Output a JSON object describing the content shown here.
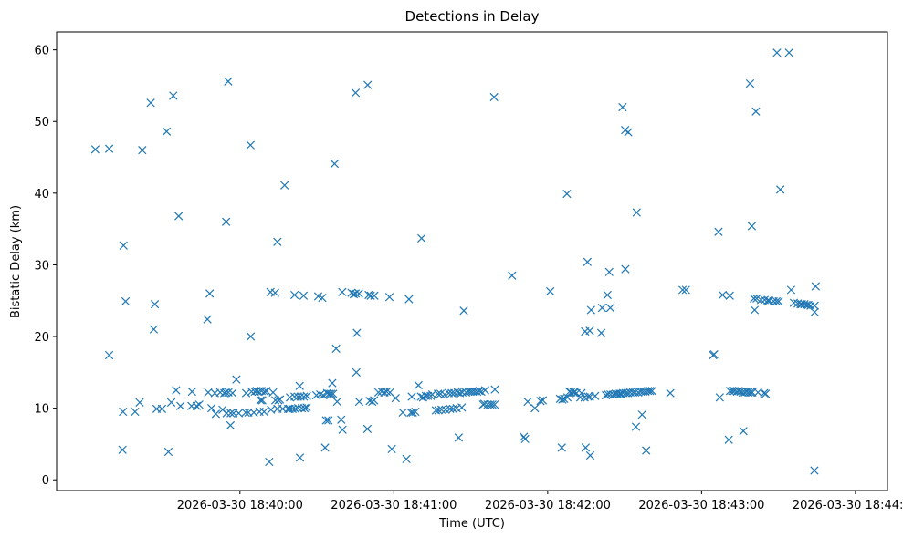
{
  "chart_data": {
    "type": "scatter",
    "title": "Detections in Delay",
    "xlabel": "Time (UTC)",
    "ylabel": "Bistatic Delay (km)",
    "x_unit": "seconds after 2026-03-30 18:39:00",
    "xlim": [
      -11.5,
      312.5
    ],
    "ylim": [
      -1.5,
      62.5
    ],
    "x_ticks": [
      {
        "value": 60,
        "label": "2026-03-30 18:40:00"
      },
      {
        "value": 120,
        "label": "2026-03-30 18:41:00"
      },
      {
        "value": 180,
        "label": "2026-03-30 18:42:00"
      },
      {
        "value": 240,
        "label": "2026-03-30 18:43:00"
      },
      {
        "value": 300,
        "label": "2026-03-30 18:44:00"
      }
    ],
    "y_ticks": [
      {
        "value": 0,
        "label": "0"
      },
      {
        "value": 10,
        "label": "10"
      },
      {
        "value": 20,
        "label": "20"
      },
      {
        "value": 30,
        "label": "30"
      },
      {
        "value": 40,
        "label": "40"
      },
      {
        "value": 50,
        "label": "50"
      },
      {
        "value": 60,
        "label": "60"
      }
    ],
    "marker": "x",
    "color": "#1f77b4",
    "grid": false,
    "series": [
      {
        "name": "detections",
        "points": [
          [
            3.6,
            46.1
          ],
          [
            9,
            46.2
          ],
          [
            9,
            17.4
          ],
          [
            14.6,
            32.7
          ],
          [
            15.4,
            24.9
          ],
          [
            14.4,
            9.5
          ],
          [
            14.2,
            4.2
          ],
          [
            19.1,
            9.5
          ],
          [
            20.9,
            10.8
          ],
          [
            21.9,
            46
          ],
          [
            25.2,
            52.6
          ],
          [
            26.8,
            24.5
          ],
          [
            26.4,
            21
          ],
          [
            27.5,
            9.9
          ],
          [
            29.6,
            9.9
          ],
          [
            31.4,
            48.6
          ],
          [
            32.1,
            3.9
          ],
          [
            33.2,
            10.8
          ],
          [
            34,
            53.6
          ],
          [
            35.1,
            12.5
          ],
          [
            36.1,
            36.8
          ],
          [
            36.8,
            10.3
          ],
          [
            41.3,
            12.3
          ],
          [
            41.1,
            10.3
          ],
          [
            43.1,
            10.3
          ],
          [
            44.1,
            10.5
          ],
          [
            47.3,
            22.4
          ],
          [
            48.2,
            26
          ],
          [
            47.6,
            12.2
          ],
          [
            48.9,
            10
          ],
          [
            50.2,
            12.1
          ],
          [
            50.6,
            9.2
          ],
          [
            52.3,
            12.2
          ],
          [
            53.2,
            9.8
          ],
          [
            53.9,
            12.1
          ],
          [
            54.6,
            36
          ],
          [
            54.5,
            12.2
          ],
          [
            54.8,
            9.3
          ],
          [
            55.4,
            55.6
          ],
          [
            55.5,
            12.2
          ],
          [
            56.3,
            7.6
          ],
          [
            56.4,
            9.3
          ],
          [
            57.1,
            12.1
          ],
          [
            57.5,
            9.3
          ],
          [
            58.6,
            14
          ],
          [
            59.5,
            9.3
          ],
          [
            62.2,
            9.4
          ],
          [
            62.4,
            12.1
          ],
          [
            63.3,
            9.4
          ],
          [
            64.1,
            46.7
          ],
          [
            64.2,
            20
          ],
          [
            64.5,
            12.3
          ],
          [
            65.4,
            9.4
          ],
          [
            65.8,
            12.3
          ],
          [
            66.5,
            12.4
          ],
          [
            67.3,
            12.3
          ],
          [
            67.6,
            9.5
          ],
          [
            68,
            11.1
          ],
          [
            68.4,
            12.4
          ],
          [
            68.7,
            11.1
          ],
          [
            69.4,
            9.5
          ],
          [
            69.6,
            12.3
          ],
          [
            70.3,
            12.4
          ],
          [
            71.4,
            2.5
          ],
          [
            71.9,
            26.2
          ],
          [
            72.1,
            9.8
          ],
          [
            72.9,
            12.2
          ],
          [
            73.7,
            26.1
          ],
          [
            73.8,
            11.1
          ],
          [
            74.6,
            33.2
          ],
          [
            74.6,
            9.9
          ],
          [
            75,
            11.1
          ],
          [
            75.6,
            11.2
          ],
          [
            76.7,
            9.9
          ],
          [
            77.4,
            41.1
          ],
          [
            78.8,
            9.9
          ],
          [
            79.4,
            9.9
          ],
          [
            79.5,
            11.5
          ],
          [
            80.5,
            9.9
          ],
          [
            81.3,
            25.8
          ],
          [
            81.3,
            11.6
          ],
          [
            81.6,
            9.9
          ],
          [
            82.6,
            11.6
          ],
          [
            82.7,
            10
          ],
          [
            83.4,
            3.1
          ],
          [
            83.3,
            13.1
          ],
          [
            83.6,
            11.6
          ],
          [
            84.1,
            10
          ],
          [
            84.8,
            25.7
          ],
          [
            84.9,
            11.6
          ],
          [
            85.2,
            10
          ],
          [
            86,
            10.1
          ],
          [
            86.1,
            11.7
          ],
          [
            89.8,
            11.8
          ],
          [
            90.5,
            25.6
          ],
          [
            91.3,
            11.9
          ],
          [
            92.1,
            25.4
          ],
          [
            92.5,
            11.8
          ],
          [
            93.2,
            4.5
          ],
          [
            93.6,
            8.3
          ],
          [
            94,
            12.1
          ],
          [
            94.5,
            8.3
          ],
          [
            94.8,
            12
          ],
          [
            95.5,
            12
          ],
          [
            96,
            13.5
          ],
          [
            96.3,
            12
          ],
          [
            96.9,
            44.1
          ],
          [
            97.5,
            18.3
          ],
          [
            97.9,
            10.9
          ],
          [
            99.5,
            8.4
          ],
          [
            99.9,
            26.2
          ],
          [
            100,
            7
          ],
          [
            103.5,
            26.1
          ],
          [
            104.4,
            25.9
          ],
          [
            105.1,
            54
          ],
          [
            105.1,
            26
          ],
          [
            105.6,
            20.5
          ],
          [
            105.4,
            15
          ],
          [
            106.4,
            26
          ],
          [
            106.5,
            10.9
          ],
          [
            109.8,
            55.1
          ],
          [
            109.7,
            7.1
          ],
          [
            110.2,
            25.8
          ],
          [
            110.6,
            11
          ],
          [
            111,
            25.7
          ],
          [
            111.6,
            10.9
          ],
          [
            112.4,
            25.7
          ],
          [
            112.3,
            11.1
          ],
          [
            114,
            12.2
          ],
          [
            115.3,
            12.3
          ],
          [
            116.3,
            12.2
          ],
          [
            117.2,
            12.3
          ],
          [
            118.3,
            25.5
          ],
          [
            118.5,
            12.2
          ],
          [
            119.2,
            4.3
          ],
          [
            120.7,
            11.4
          ],
          [
            123.5,
            9.4
          ],
          [
            124.9,
            2.9
          ],
          [
            125.9,
            25.2
          ],
          [
            126.7,
            9.4
          ],
          [
            127,
            11.6
          ],
          [
            127.4,
            9.4
          ],
          [
            128.4,
            9.5
          ],
          [
            129.6,
            13.2
          ],
          [
            130.8,
            33.7
          ],
          [
            130.6,
            11.6
          ],
          [
            131.4,
            11.5
          ],
          [
            132.5,
            11.7
          ],
          [
            133.3,
            11.7
          ],
          [
            134.4,
            11.7
          ],
          [
            135,
            11.9
          ],
          [
            136.4,
            9.7
          ],
          [
            137.2,
            12
          ],
          [
            137.4,
            9.7
          ],
          [
            138.2,
            12
          ],
          [
            138.6,
            9.8
          ],
          [
            139.8,
            11.9
          ],
          [
            140.2,
            9.8
          ],
          [
            141.4,
            12.1
          ],
          [
            141.9,
            9.9
          ],
          [
            142.6,
            12.1
          ],
          [
            143.1,
            9.9
          ],
          [
            143.6,
            12.1
          ],
          [
            144.5,
            10
          ],
          [
            144.9,
            12.2
          ],
          [
            145.3,
            5.9
          ],
          [
            145.7,
            12.1
          ],
          [
            146.5,
            10.1
          ],
          [
            146.7,
            12.2
          ],
          [
            147.3,
            23.6
          ],
          [
            148.2,
            12.2
          ],
          [
            149.1,
            12.3
          ],
          [
            149.9,
            12.3
          ],
          [
            150.7,
            12.3
          ],
          [
            151.6,
            12.3
          ],
          [
            152.5,
            12.3
          ],
          [
            153.4,
            12.4
          ],
          [
            154.1,
            12.3
          ],
          [
            154.8,
            10.5
          ],
          [
            155.6,
            12.5
          ],
          [
            155.3,
            10.6
          ],
          [
            156.6,
            10.5
          ],
          [
            157.6,
            10.5
          ],
          [
            158.4,
            10.5
          ],
          [
            159.1,
            53.4
          ],
          [
            159.4,
            12.6
          ],
          [
            159.3,
            10.5
          ],
          [
            166.1,
            28.5
          ],
          [
            170.7,
            6
          ],
          [
            171.2,
            5.7
          ],
          [
            172.2,
            10.9
          ],
          [
            175,
            10
          ],
          [
            177.2,
            11
          ],
          [
            178.1,
            11.1
          ],
          [
            181,
            26.3
          ],
          [
            184.8,
            11.3
          ],
          [
            185.5,
            4.5
          ],
          [
            185.7,
            11.2
          ],
          [
            186.4,
            11.3
          ],
          [
            187.5,
            39.9
          ],
          [
            187.7,
            11.5
          ],
          [
            188.5,
            12.3
          ],
          [
            189.1,
            12.2
          ],
          [
            190.1,
            12.2
          ],
          [
            190.4,
            12.2
          ],
          [
            191.2,
            12.1
          ],
          [
            192.7,
            11.5
          ],
          [
            193.2,
            12.1
          ],
          [
            194.4,
            11.5
          ],
          [
            194.6,
            20.7
          ],
          [
            194.8,
            4.5
          ],
          [
            195.5,
            30.4
          ],
          [
            195.7,
            11.6
          ],
          [
            196.4,
            20.8
          ],
          [
            196.5,
            11.6
          ],
          [
            196.6,
            3.4
          ],
          [
            196.9,
            23.7
          ],
          [
            198.5,
            11.7
          ],
          [
            200.9,
            20.5
          ],
          [
            201.2,
            24
          ],
          [
            202.7,
            11.8
          ],
          [
            203.3,
            25.8
          ],
          [
            203.5,
            11.9
          ],
          [
            204,
            29
          ],
          [
            204.4,
            24
          ],
          [
            204.5,
            11.9
          ],
          [
            205.6,
            11.9
          ],
          [
            206.5,
            12
          ],
          [
            207.2,
            12
          ],
          [
            208.1,
            12
          ],
          [
            208.5,
            12
          ],
          [
            209.2,
            52
          ],
          [
            209.4,
            12.1
          ],
          [
            210.2,
            48.8
          ],
          [
            210.3,
            29.4
          ],
          [
            210.4,
            12.1
          ],
          [
            211.2,
            12.1
          ],
          [
            211.4,
            48.5
          ],
          [
            212.2,
            12.2
          ],
          [
            213.3,
            12.2
          ],
          [
            214.1,
            12.2
          ],
          [
            214.7,
            37.3
          ],
          [
            214.4,
            7.4
          ],
          [
            215.3,
            12.2
          ],
          [
            216.3,
            12.3
          ],
          [
            216.8,
            9.1
          ],
          [
            217.2,
            12.3
          ],
          [
            218.1,
            12.3
          ],
          [
            218.4,
            4.1
          ],
          [
            219.1,
            12.4
          ],
          [
            219.9,
            12.4
          ],
          [
            220.7,
            12.4
          ],
          [
            227.8,
            12.1
          ],
          [
            232.6,
            26.5
          ],
          [
            233.9,
            26.5
          ],
          [
            244.5,
            17.4
          ],
          [
            244.9,
            17.5
          ],
          [
            246.6,
            34.6
          ],
          [
            247.1,
            11.5
          ],
          [
            248.2,
            25.8
          ],
          [
            250.6,
            5.6
          ],
          [
            251,
            25.7
          ],
          [
            251.1,
            12.4
          ],
          [
            252,
            12.4
          ],
          [
            252.8,
            12.4
          ],
          [
            253.8,
            12.3
          ],
          [
            254.5,
            12.4
          ],
          [
            255.2,
            12.3
          ],
          [
            256,
            12.2
          ],
          [
            256.3,
            6.8
          ],
          [
            256.9,
            12.2
          ],
          [
            257.6,
            12.3
          ],
          [
            258.3,
            12.2
          ],
          [
            258.9,
            55.3
          ],
          [
            259.1,
            12.2
          ],
          [
            259.6,
            35.4
          ],
          [
            259.8,
            12.2
          ],
          [
            260.4,
            25.3
          ],
          [
            260.7,
            23.7
          ],
          [
            261.2,
            51.4
          ],
          [
            261.5,
            25.3
          ],
          [
            262,
            12.2
          ],
          [
            263.2,
            25.1
          ],
          [
            264.4,
            12.1
          ],
          [
            264.6,
            25.1
          ],
          [
            265,
            12
          ],
          [
            265.8,
            25
          ],
          [
            266.4,
            25
          ],
          [
            268.1,
            24.9
          ],
          [
            269.4,
            59.6
          ],
          [
            269.2,
            24.9
          ],
          [
            270.1,
            24.9
          ],
          [
            270.7,
            40.5
          ],
          [
            274.1,
            59.6
          ],
          [
            274.9,
            26.5
          ],
          [
            276,
            24.7
          ],
          [
            277.5,
            24.6
          ],
          [
            278.6,
            24.5
          ],
          [
            279.1,
            24.5
          ],
          [
            280.1,
            24.5
          ],
          [
            280.9,
            24.4
          ],
          [
            281.6,
            24.4
          ],
          [
            282.5,
            24.3
          ],
          [
            284,
            1.3
          ],
          [
            284.1,
            24.3
          ],
          [
            284.1,
            23.4
          ],
          [
            284.5,
            27
          ]
        ]
      }
    ]
  }
}
